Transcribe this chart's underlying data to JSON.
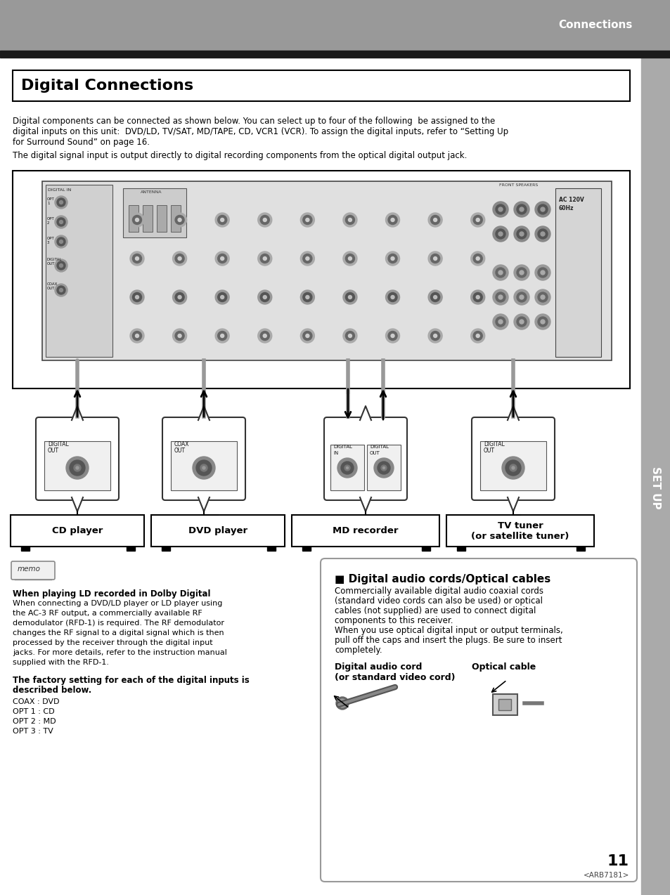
{
  "page_bg": "#ffffff",
  "header_bg": "#999999",
  "header_text": "Connections",
  "header_text_color": "#ffffff",
  "dark_bar_bg": "#1a1a1a",
  "sidebar_bg": "#aaaaaa",
  "sidebar_text": "SET UP",
  "title_box_text": "Digital Connections",
  "body_text_line1": "Digital components can be connected as shown below. You can select up to four of the following  be assigned to the",
  "body_text_line2": "digital inputs on this unit:  DVD/LD, TV/SAT, MD/TAPE, CD, VCR1 (VCR). To assign the digital inputs, refer to “Setting Up",
  "body_text_line3": "for Surround Sound” on page 16.",
  "body_text_line4": "The digital signal input is output directly to digital recording components from the optical digital output jack.",
  "memo_title": "When playing LD recorded in Dolby Digital",
  "memo_body_lines": [
    "When connecting a DVD/LD player or LD player using",
    "the AC-3 RF output, a commercially available RF",
    "demodulator (RFD-1) is required. The RF demodulator",
    "changes the RF signal to a digital signal which is then",
    "processed by the receiver through the digital input",
    "jacks. For more details, refer to the instruction manual",
    "supplied with the RFD-1."
  ],
  "memo_body2_bold": "The factory setting for each of the digital inputs is\ndescribed below.",
  "memo_body2_lines": [
    "COAX : DVD",
    "OPT 1 : CD",
    "OPT 2 : MD",
    "OPT 3 : TV"
  ],
  "right_box_title": "■ Digital audio cords/Optical cables",
  "right_box_body_lines": [
    "Commercially available digital audio coaxial cords",
    "(standard video cords can also be used) or optical",
    "cables (not supplied) are used to connect digital",
    "components to this receiver.",
    "When you use optical digital input or output terminals,",
    "pull off the caps and insert the plugs. Be sure to insert",
    "completely."
  ],
  "right_box_label1": "Digital audio cord\n(or standard video cord)",
  "right_box_label2": "Optical cable",
  "page_number": "11",
  "page_code": "<ARB7181>"
}
